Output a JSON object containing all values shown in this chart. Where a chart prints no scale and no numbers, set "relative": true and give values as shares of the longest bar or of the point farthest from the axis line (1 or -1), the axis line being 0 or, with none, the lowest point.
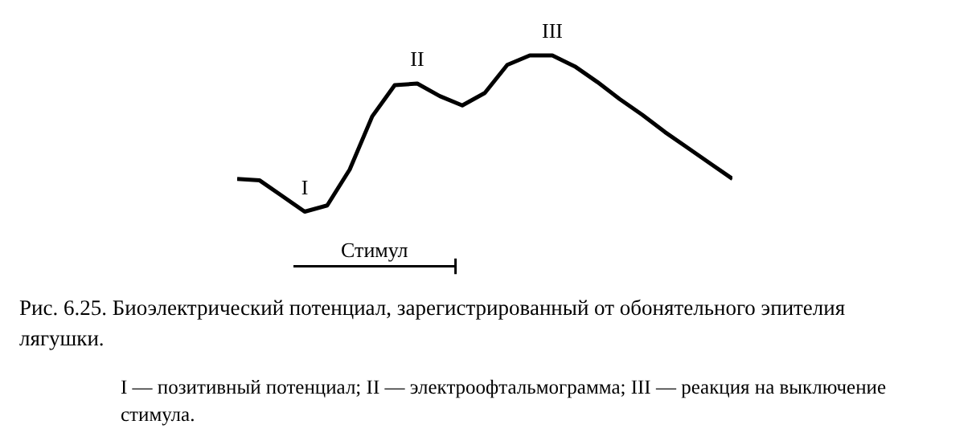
{
  "chart_data": {
    "type": "line",
    "relative": true,
    "tick_labels": false,
    "grid": false,
    "categories": [
      null,
      null,
      null,
      null,
      null,
      null,
      null,
      null,
      null,
      null,
      null,
      null,
      null,
      null,
      null,
      null,
      null,
      null,
      null,
      null,
      null,
      null,
      null
    ],
    "series": [
      {
        "color": "#000000",
        "values": [
          0.21,
          0.2,
          0.1,
          0.0,
          0.04,
          0.27,
          0.61,
          0.81,
          0.82,
          0.74,
          0.68,
          0.76,
          0.94,
          1,
          1,
          0.93,
          0.83,
          0.72,
          0.62,
          0.51,
          0.41,
          0.31,
          0.21
        ]
      }
    ],
    "title": "Рис. 6.25. Биоэлектрический потенциал, зарегистрированный от обонятельного эпителия лягушки.",
    "annotations": [
      "I",
      "II",
      "III",
      "Стимул",
      "I — позитивный потенциал; II — электроофтальмограмма; III — реакция на выключение стимула."
    ]
  }
}
